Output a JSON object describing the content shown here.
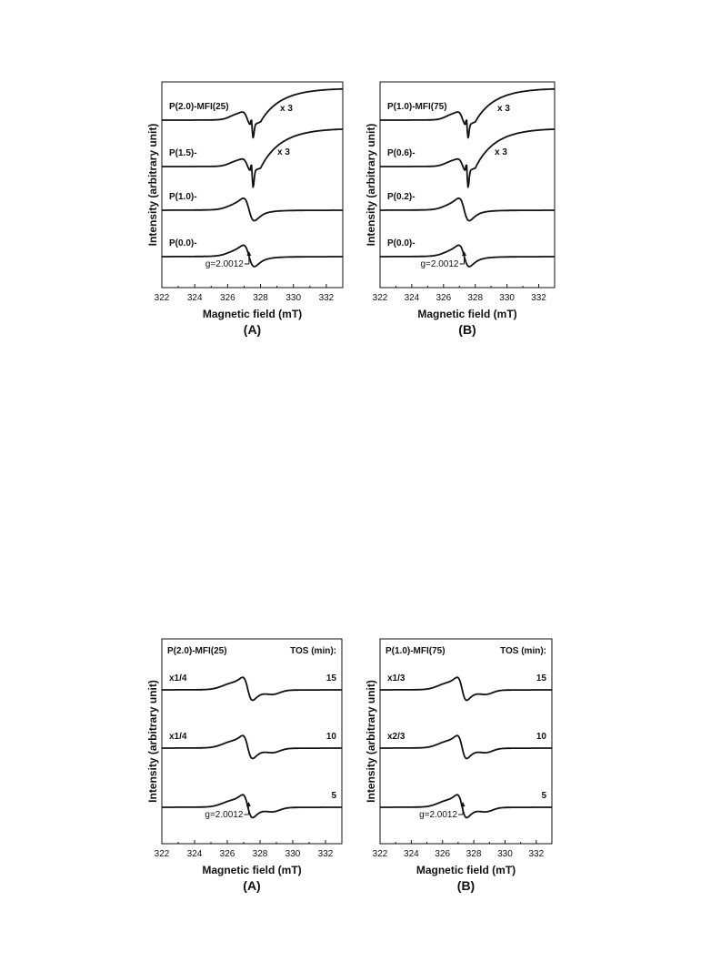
{
  "chart_data": [
    {
      "type": "line",
      "panel_label": "(A)",
      "xlabel": "Magnetic field (mT)",
      "ylabel": "Intensity (arbitrary unit)",
      "xlim": [
        322,
        333
      ],
      "xticks": [
        "322",
        "324",
        "326",
        "328",
        "330",
        "332"
      ],
      "annotation": "g=2.0012",
      "series": [
        {
          "name": "P(2.0)-MFI(25)",
          "scale": "x 3"
        },
        {
          "name": "P(1.5)-",
          "scale": "x 3"
        },
        {
          "name": "P(1.0)-"
        },
        {
          "name": "P(0.0)-"
        }
      ]
    },
    {
      "type": "line",
      "panel_label": "(B)",
      "xlabel": "Magnetic field (mT)",
      "ylabel": "Intensity (arbitrary unit)",
      "xlim": [
        322,
        333
      ],
      "xticks": [
        "322",
        "324",
        "326",
        "328",
        "330",
        "332"
      ],
      "annotation": "g=2.0012",
      "series": [
        {
          "name": "P(1.0)-MFI(75)",
          "scale": "x 3"
        },
        {
          "name": "P(0.6)-",
          "scale": "x 3"
        },
        {
          "name": "P(0.2)-"
        },
        {
          "name": "P(0.0)-"
        }
      ]
    },
    {
      "type": "line",
      "panel_label": "(A)",
      "xlabel": "Magnetic field (mT)",
      "ylabel": "Intensity (arbitrary unit)",
      "xlim": [
        322,
        333
      ],
      "xticks": [
        "322",
        "324",
        "326",
        "328",
        "330",
        "332"
      ],
      "annotation": "g=2.0012",
      "sample": "P(2.0)-MFI(25)",
      "legend_title": "TOS (min):",
      "series": [
        {
          "name": "15",
          "scale": "x1/4"
        },
        {
          "name": "10",
          "scale": "x1/4"
        },
        {
          "name": "5"
        }
      ]
    },
    {
      "type": "line",
      "panel_label": "(B)",
      "xlabel": "Magnetic field (mT)",
      "ylabel": "Intensity (arbitrary unit)",
      "xlim": [
        322,
        333
      ],
      "xticks": [
        "322",
        "324",
        "326",
        "328",
        "330",
        "332"
      ],
      "annotation": "g=2.0012",
      "sample": "P(1.0)-MFI(75)",
      "legend_title": "TOS (min):",
      "series": [
        {
          "name": "15",
          "scale": "x1/3"
        },
        {
          "name": "10",
          "scale": "x2/3"
        },
        {
          "name": "5"
        }
      ]
    }
  ]
}
